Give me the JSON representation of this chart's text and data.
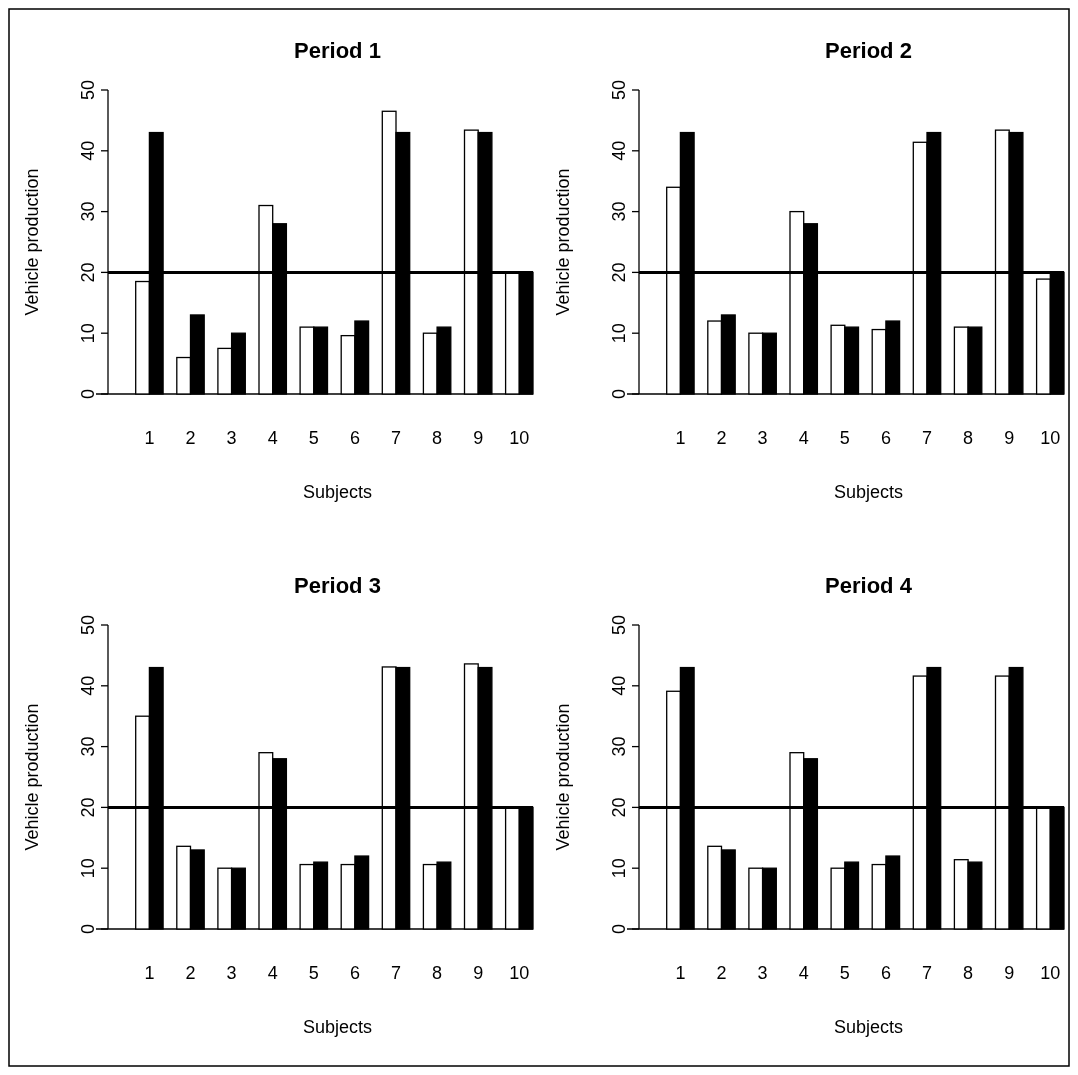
{
  "chart_data": [
    {
      "type": "bar",
      "title": "Period 1",
      "xlabel": "Subjects",
      "ylabel": "Vehicle production",
      "categories": [
        "1",
        "2",
        "3",
        "4",
        "5",
        "6",
        "7",
        "8",
        "9",
        "10"
      ],
      "ylim": [
        0,
        50
      ],
      "yticks": [
        0,
        10,
        20,
        30,
        40,
        50
      ],
      "series": [
        {
          "color": "#ffffff",
          "values": [
            18.5,
            6,
            7.5,
            31,
            11,
            9.6,
            46.5,
            10,
            43.4,
            20
          ]
        },
        {
          "color": "#000000",
          "values": [
            43,
            13,
            10,
            28,
            11,
            12,
            43,
            11,
            43,
            20
          ]
        }
      ],
      "ref_lines": [
        {
          "axis": "y",
          "value": 20,
          "color": "#000000"
        }
      ]
    },
    {
      "type": "bar",
      "title": "Period 2",
      "xlabel": "Subjects",
      "ylabel": "Vehicle production",
      "categories": [
        "1",
        "2",
        "3",
        "4",
        "5",
        "6",
        "7",
        "8",
        "9",
        "10"
      ],
      "ylim": [
        0,
        50
      ],
      "yticks": [
        0,
        10,
        20,
        30,
        40,
        50
      ],
      "series": [
        {
          "color": "#ffffff",
          "values": [
            34,
            12,
            10,
            30,
            11.3,
            10.6,
            41.4,
            11,
            43.4,
            18.9
          ]
        },
        {
          "color": "#000000",
          "values": [
            43,
            13,
            10,
            28,
            11,
            12,
            43,
            11,
            43,
            20
          ]
        }
      ],
      "ref_lines": [
        {
          "axis": "y",
          "value": 20,
          "color": "#000000"
        }
      ]
    },
    {
      "type": "bar",
      "title": "Period 3",
      "xlabel": "Subjects",
      "ylabel": "Vehicle production",
      "categories": [
        "1",
        "2",
        "3",
        "4",
        "5",
        "6",
        "7",
        "8",
        "9",
        "10"
      ],
      "ylim": [
        0,
        50
      ],
      "yticks": [
        0,
        10,
        20,
        30,
        40,
        50
      ],
      "series": [
        {
          "color": "#ffffff",
          "values": [
            35,
            13.6,
            10,
            29,
            10.6,
            10.6,
            43.1,
            10.6,
            43.6,
            20
          ]
        },
        {
          "color": "#000000",
          "values": [
            43,
            13,
            10,
            28,
            11,
            12,
            43,
            11,
            43,
            20
          ]
        }
      ],
      "ref_lines": [
        {
          "axis": "y",
          "value": 20,
          "color": "#000000"
        }
      ]
    },
    {
      "type": "bar",
      "title": "Period 4",
      "xlabel": "Subjects",
      "ylabel": "Vehicle production",
      "categories": [
        "1",
        "2",
        "3",
        "4",
        "5",
        "6",
        "7",
        "8",
        "9",
        "10"
      ],
      "ylim": [
        0,
        50
      ],
      "yticks": [
        0,
        10,
        20,
        30,
        40,
        50
      ],
      "series": [
        {
          "color": "#ffffff",
          "values": [
            39.1,
            13.6,
            10,
            29,
            10,
            10.6,
            41.6,
            11.4,
            41.6,
            20
          ]
        },
        {
          "color": "#000000",
          "values": [
            43,
            13,
            10,
            28,
            11,
            12,
            43,
            11,
            43,
            20
          ]
        }
      ],
      "ref_lines": [
        {
          "axis": "y",
          "value": 20,
          "color": "#000000"
        }
      ]
    }
  ]
}
